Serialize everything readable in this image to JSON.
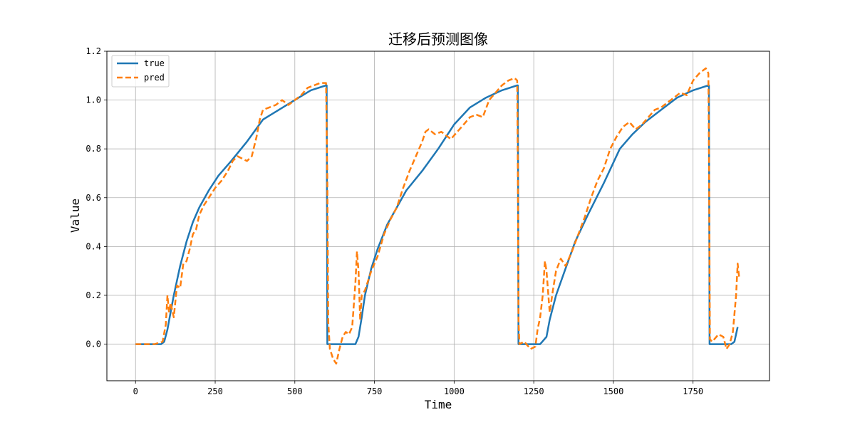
{
  "chart_data": {
    "type": "line",
    "title": "迁移后预测图像",
    "xlabel": "Time",
    "ylabel": "Value",
    "xlim": [
      -90,
      1990
    ],
    "ylim": [
      -0.15,
      1.2
    ],
    "xticks": [
      "0",
      "250",
      "500",
      "750",
      "1000",
      "1250",
      "1500",
      "1750"
    ],
    "yticks": [
      "0.0",
      "0.2",
      "0.4",
      "0.6",
      "0.8",
      "1.0",
      "1.2"
    ],
    "grid": true,
    "legend_position": "top-left",
    "series": [
      {
        "name": "true",
        "color": "#1f77b4",
        "style": "solid",
        "points": [
          [
            0,
            0
          ],
          [
            80,
            0
          ],
          [
            90,
            0.01
          ],
          [
            100,
            0.06
          ],
          [
            110,
            0.13
          ],
          [
            120,
            0.2
          ],
          [
            140,
            0.32
          ],
          [
            160,
            0.42
          ],
          [
            180,
            0.5
          ],
          [
            200,
            0.56
          ],
          [
            230,
            0.63
          ],
          [
            260,
            0.69
          ],
          [
            300,
            0.75
          ],
          [
            350,
            0.83
          ],
          [
            400,
            0.92
          ],
          [
            450,
            0.96
          ],
          [
            500,
            1.0
          ],
          [
            550,
            1.04
          ],
          [
            598,
            1.06
          ],
          [
            600,
            1.06
          ],
          [
            602,
            0
          ],
          [
            640,
            0
          ],
          [
            690,
            0
          ],
          [
            700,
            0.03
          ],
          [
            710,
            0.11
          ],
          [
            720,
            0.2
          ],
          [
            740,
            0.31
          ],
          [
            760,
            0.39
          ],
          [
            790,
            0.49
          ],
          [
            820,
            0.56
          ],
          [
            850,
            0.63
          ],
          [
            900,
            0.71
          ],
          [
            950,
            0.8
          ],
          [
            1000,
            0.9
          ],
          [
            1050,
            0.97
          ],
          [
            1100,
            1.01
          ],
          [
            1150,
            1.04
          ],
          [
            1198,
            1.06
          ],
          [
            1200,
            1.06
          ],
          [
            1202,
            0
          ],
          [
            1270,
            0
          ],
          [
            1290,
            0.03
          ],
          [
            1300,
            0.1
          ],
          [
            1320,
            0.2
          ],
          [
            1350,
            0.31
          ],
          [
            1380,
            0.42
          ],
          [
            1420,
            0.53
          ],
          [
            1470,
            0.66
          ],
          [
            1520,
            0.8
          ],
          [
            1560,
            0.86
          ],
          [
            1600,
            0.91
          ],
          [
            1650,
            0.96
          ],
          [
            1700,
            1.01
          ],
          [
            1750,
            1.04
          ],
          [
            1798,
            1.06
          ],
          [
            1800,
            1.06
          ],
          [
            1802,
            0
          ],
          [
            1870,
            0
          ],
          [
            1880,
            0.01
          ],
          [
            1890,
            0.07
          ]
        ]
      },
      {
        "name": "pred",
        "color": "#ff7f0e",
        "style": "dashed",
        "points": [
          [
            0,
            0
          ],
          [
            60,
            0
          ],
          [
            85,
            0.01
          ],
          [
            95,
            0.08
          ],
          [
            100,
            0.2
          ],
          [
            105,
            0.13
          ],
          [
            110,
            0.17
          ],
          [
            120,
            0.11
          ],
          [
            130,
            0.24
          ],
          [
            140,
            0.23
          ],
          [
            150,
            0.33
          ],
          [
            160,
            0.34
          ],
          [
            170,
            0.39
          ],
          [
            180,
            0.45
          ],
          [
            190,
            0.47
          ],
          [
            200,
            0.53
          ],
          [
            215,
            0.57
          ],
          [
            230,
            0.6
          ],
          [
            250,
            0.64
          ],
          [
            270,
            0.67
          ],
          [
            290,
            0.71
          ],
          [
            305,
            0.75
          ],
          [
            320,
            0.77
          ],
          [
            335,
            0.76
          ],
          [
            350,
            0.75
          ],
          [
            365,
            0.77
          ],
          [
            380,
            0.85
          ],
          [
            390,
            0.92
          ],
          [
            400,
            0.96
          ],
          [
            420,
            0.97
          ],
          [
            440,
            0.98
          ],
          [
            460,
            1.0
          ],
          [
            480,
            0.98
          ],
          [
            500,
            1.0
          ],
          [
            520,
            1.02
          ],
          [
            540,
            1.05
          ],
          [
            560,
            1.06
          ],
          [
            580,
            1.07
          ],
          [
            598,
            1.07
          ],
          [
            602,
            0.68
          ],
          [
            605,
            0.09
          ],
          [
            610,
            -0.02
          ],
          [
            620,
            -0.06
          ],
          [
            630,
            -0.08
          ],
          [
            640,
            -0.02
          ],
          [
            650,
            0.03
          ],
          [
            660,
            0.05
          ],
          [
            670,
            0.04
          ],
          [
            680,
            0.07
          ],
          [
            690,
            0.25
          ],
          [
            695,
            0.38
          ],
          [
            700,
            0.3
          ],
          [
            705,
            0.1
          ],
          [
            710,
            0.2
          ],
          [
            720,
            0.22
          ],
          [
            740,
            0.3
          ],
          [
            760,
            0.36
          ],
          [
            780,
            0.45
          ],
          [
            800,
            0.51
          ],
          [
            820,
            0.56
          ],
          [
            840,
            0.64
          ],
          [
            860,
            0.71
          ],
          [
            880,
            0.77
          ],
          [
            900,
            0.83
          ],
          [
            910,
            0.87
          ],
          [
            920,
            0.88
          ],
          [
            940,
            0.86
          ],
          [
            960,
            0.87
          ],
          [
            990,
            0.84
          ],
          [
            1010,
            0.87
          ],
          [
            1030,
            0.9
          ],
          [
            1050,
            0.93
          ],
          [
            1070,
            0.94
          ],
          [
            1090,
            0.93
          ],
          [
            1110,
            1.0
          ],
          [
            1130,
            1.03
          ],
          [
            1150,
            1.06
          ],
          [
            1170,
            1.08
          ],
          [
            1190,
            1.09
          ],
          [
            1198,
            1.08
          ],
          [
            1200,
            0.7
          ],
          [
            1202,
            0.1
          ],
          [
            1205,
            0.0
          ],
          [
            1220,
            0.01
          ],
          [
            1240,
            -0.02
          ],
          [
            1255,
            -0.01
          ],
          [
            1262,
            0.06
          ],
          [
            1270,
            0.11
          ],
          [
            1278,
            0.2
          ],
          [
            1285,
            0.34
          ],
          [
            1290,
            0.3
          ],
          [
            1300,
            0.13
          ],
          [
            1310,
            0.22
          ],
          [
            1320,
            0.3
          ],
          [
            1335,
            0.35
          ],
          [
            1350,
            0.32
          ],
          [
            1370,
            0.38
          ],
          [
            1390,
            0.45
          ],
          [
            1410,
            0.52
          ],
          [
            1430,
            0.6
          ],
          [
            1450,
            0.67
          ],
          [
            1470,
            0.72
          ],
          [
            1490,
            0.8
          ],
          [
            1510,
            0.85
          ],
          [
            1530,
            0.89
          ],
          [
            1550,
            0.91
          ],
          [
            1570,
            0.88
          ],
          [
            1590,
            0.9
          ],
          [
            1610,
            0.93
          ],
          [
            1630,
            0.96
          ],
          [
            1650,
            0.97
          ],
          [
            1670,
            0.99
          ],
          [
            1690,
            1.01
          ],
          [
            1710,
            1.03
          ],
          [
            1730,
            1.02
          ],
          [
            1750,
            1.08
          ],
          [
            1770,
            1.11
          ],
          [
            1790,
            1.13
          ],
          [
            1798,
            1.11
          ],
          [
            1800,
            0.8
          ],
          [
            1803,
            0.02
          ],
          [
            1810,
            0.01
          ],
          [
            1830,
            0.04
          ],
          [
            1845,
            0.03
          ],
          [
            1855,
            -0.02
          ],
          [
            1865,
            0.0
          ],
          [
            1875,
            0.05
          ],
          [
            1885,
            0.2
          ],
          [
            1890,
            0.33
          ],
          [
            1895,
            0.27
          ]
        ]
      }
    ]
  }
}
